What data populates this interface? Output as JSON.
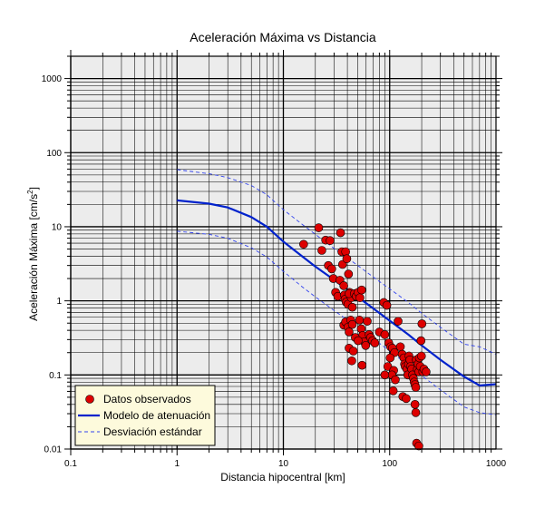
{
  "chart_data": {
    "type": "scatter",
    "title": "Aceleración Máxima vs Distancia",
    "xlabel": "Distancia hipocentral [km]",
    "ylabel_main": "Aceleración Máxima [cm/s",
    "ylabel_sup": "2",
    "ylabel_end": "]",
    "xscale": "log",
    "yscale": "log",
    "xlim": [
      0.1,
      1000
    ],
    "ylim": [
      0.01,
      2000
    ],
    "x_ticks": [
      {
        "value": 0.1,
        "label": "0.1"
      },
      {
        "value": 1,
        "label": "1"
      },
      {
        "value": 10,
        "label": "10"
      },
      {
        "value": 100,
        "label": "100"
      },
      {
        "value": 1000,
        "label": "1000"
      }
    ],
    "y_ticks": [
      {
        "value": 0.01,
        "label": "0.01"
      },
      {
        "value": 0.1,
        "label": "0.1"
      },
      {
        "value": 1,
        "label": "1"
      },
      {
        "value": 10,
        "label": "10"
      },
      {
        "value": 100,
        "label": "100"
      },
      {
        "value": 1000,
        "label": "1000"
      }
    ],
    "grid": true,
    "legend_position": "bottom-left",
    "colors": {
      "observed": "#dd0000",
      "model": "#0022cc",
      "stddev": "#3344ee",
      "plot_bg": "#ececec",
      "legend_bg": "#fdfadc"
    },
    "series": [
      {
        "name": "Datos observados",
        "kind": "points",
        "points": [
          [
            15.5,
            5.8
          ],
          [
            21.5,
            9.7
          ],
          [
            23,
            4.8
          ],
          [
            25,
            6.6
          ],
          [
            27.5,
            6.5
          ],
          [
            26.5,
            3.0
          ],
          [
            28.5,
            2.7
          ],
          [
            29.5,
            2.0
          ],
          [
            31,
            1.3
          ],
          [
            32.5,
            1.15
          ],
          [
            34,
            1.9
          ],
          [
            34.5,
            8.3
          ],
          [
            35.5,
            4.6
          ],
          [
            36,
            3.1
          ],
          [
            37,
            1.6
          ],
          [
            37.5,
            1.2
          ],
          [
            38.5,
            4.6
          ],
          [
            39.5,
            3.7
          ],
          [
            38,
            1.05
          ],
          [
            39,
            0.96
          ],
          [
            40.5,
            0.9
          ],
          [
            41,
            2.3
          ],
          [
            42,
            1.3
          ],
          [
            43.5,
            1.1
          ],
          [
            44.5,
            0.82
          ],
          [
            41.5,
            1.25
          ],
          [
            37,
            0.47
          ],
          [
            38.5,
            0.52
          ],
          [
            40.5,
            0.44
          ],
          [
            41.5,
            0.38
          ],
          [
            43,
            0.55
          ],
          [
            44.5,
            0.48
          ],
          [
            46.5,
            1.25
          ],
          [
            48.5,
            1.15
          ],
          [
            50.5,
            1.3
          ],
          [
            52.5,
            1.1
          ],
          [
            54.5,
            1.4
          ],
          [
            52,
            0.55
          ],
          [
            54,
            0.42
          ],
          [
            55.5,
            0.34
          ],
          [
            57.5,
            0.28
          ],
          [
            59.5,
            0.25
          ],
          [
            61.5,
            0.53
          ],
          [
            64,
            0.35
          ],
          [
            66,
            0.32
          ],
          [
            69,
            0.29
          ],
          [
            72.5,
            0.27
          ],
          [
            47.5,
            0.32
          ],
          [
            50.5,
            0.29
          ],
          [
            41.5,
            0.23
          ],
          [
            45.5,
            0.21
          ],
          [
            44,
            0.155
          ],
          [
            55,
            0.135
          ],
          [
            88,
            0.95
          ],
          [
            94,
            0.87
          ],
          [
            80,
            0.38
          ],
          [
            90,
            0.35
          ],
          [
            98,
            0.27
          ],
          [
            102,
            0.24
          ],
          [
            106,
            0.23
          ],
          [
            111,
            0.2
          ],
          [
            101,
            0.17
          ],
          [
            96,
            0.13
          ],
          [
            109,
            0.115
          ],
          [
            105,
            0.1
          ],
          [
            113,
            0.086
          ],
          [
            90,
            0.1
          ],
          [
            120,
            0.53
          ],
          [
            126,
            0.24
          ],
          [
            131,
            0.19
          ],
          [
            136,
            0.17
          ],
          [
            138,
            0.14
          ],
          [
            140,
            0.13
          ],
          [
            145,
            0.12
          ],
          [
            148,
            0.1
          ],
          [
            150,
            0.14
          ],
          [
            152,
            0.18
          ],
          [
            155,
            0.16
          ],
          [
            157,
            0.13
          ],
          [
            161,
            0.12
          ],
          [
            164,
            0.1
          ],
          [
            167,
            0.09
          ],
          [
            170,
            0.08
          ],
          [
            173,
            0.074
          ],
          [
            176,
            0.068
          ],
          [
            178,
            0.16
          ],
          [
            182,
            0.12
          ],
          [
            185,
            0.14
          ],
          [
            188,
            0.11
          ],
          [
            190,
            0.17
          ],
          [
            194,
            0.13
          ],
          [
            197,
            0.29
          ],
          [
            199,
            0.18
          ],
          [
            201,
            0.49
          ],
          [
            205,
            0.11
          ],
          [
            210,
            0.12
          ],
          [
            220,
            0.11
          ],
          [
            108,
            0.061
          ],
          [
            133,
            0.051
          ],
          [
            143,
            0.048
          ],
          [
            173,
            0.04
          ],
          [
            176,
            0.031
          ],
          [
            179,
            0.012
          ],
          [
            188,
            0.011
          ]
        ]
      },
      {
        "name": "Modelo de atenuación",
        "kind": "line",
        "points": [
          [
            1,
            22.7
          ],
          [
            2,
            20.5
          ],
          [
            3,
            18.2
          ],
          [
            5,
            13.5
          ],
          [
            7,
            10.0
          ],
          [
            10,
            6.3
          ],
          [
            15,
            4.0
          ],
          [
            20,
            2.9
          ],
          [
            30,
            1.92
          ],
          [
            50,
            1.13
          ],
          [
            70,
            0.79
          ],
          [
            100,
            0.54
          ],
          [
            150,
            0.35
          ],
          [
            200,
            0.25
          ],
          [
            300,
            0.16
          ],
          [
            500,
            0.095
          ],
          [
            700,
            0.072
          ],
          [
            1000,
            0.075
          ]
        ]
      },
      {
        "name": "Desviación estándar",
        "kind": "band",
        "upper": [
          [
            1,
            59
          ],
          [
            2,
            52
          ],
          [
            3,
            46
          ],
          [
            5,
            36
          ],
          [
            7,
            27
          ],
          [
            10,
            17
          ],
          [
            15,
            10.8
          ],
          [
            20,
            7.9
          ],
          [
            30,
            5.1
          ],
          [
            50,
            3.0
          ],
          [
            70,
            2.1
          ],
          [
            100,
            1.45
          ],
          [
            150,
            0.95
          ],
          [
            200,
            0.68
          ],
          [
            300,
            0.44
          ],
          [
            500,
            0.26
          ],
          [
            700,
            0.24
          ],
          [
            1000,
            0.19
          ]
        ],
        "lower": [
          [
            1,
            8.7
          ],
          [
            2,
            7.9
          ],
          [
            3,
            7.0
          ],
          [
            5,
            5.2
          ],
          [
            7,
            3.9
          ],
          [
            10,
            2.5
          ],
          [
            15,
            1.55
          ],
          [
            20,
            1.13
          ],
          [
            30,
            0.74
          ],
          [
            50,
            0.44
          ],
          [
            70,
            0.31
          ],
          [
            100,
            0.21
          ],
          [
            150,
            0.135
          ],
          [
            200,
            0.098
          ],
          [
            300,
            0.063
          ],
          [
            500,
            0.037
          ],
          [
            700,
            0.031
          ],
          [
            1000,
            0.029
          ]
        ]
      }
    ]
  }
}
